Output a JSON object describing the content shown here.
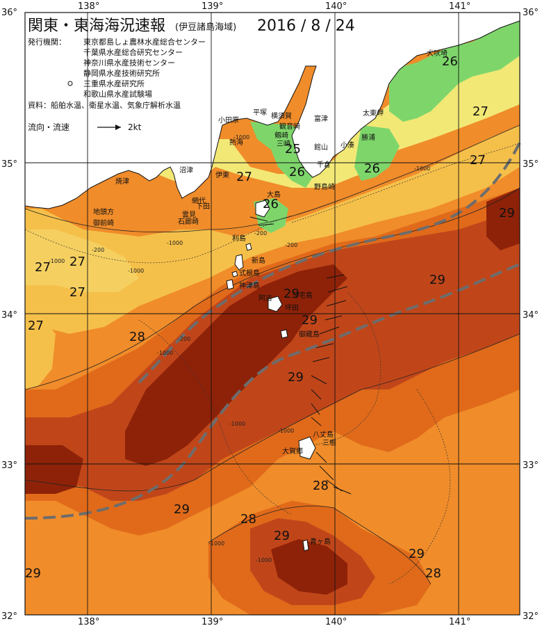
{
  "title": "関東・東海海況速報",
  "subtitle": "(伊豆諸島海域)",
  "date": "2016 / 8 / 24",
  "agencies_label": "発行機関：",
  "agencies": [
    "東京都島しょ農林水産総合センター",
    "千葉県水産総合研究センター",
    "神奈川県水産技術センター",
    "静岡県水産技術研究所",
    "三重県水産研究所",
    "和歌山県水産試験場"
  ],
  "sources": "資料：船舶水温、衛星水温、気象庁解析水温",
  "legend_flow": "流向・流速",
  "legend_speed": "2kt",
  "lon_labels": [
    "138°",
    "139°",
    "140°",
    "141°"
  ],
  "lat_labels": [
    "36°",
    "35°",
    "34°",
    "33°",
    "32°"
  ],
  "iso_labels": [
    "26",
    "27",
    "25",
    "26",
    "26",
    "27",
    "26",
    "27",
    "29",
    "27",
    "27",
    "27",
    "29",
    "27",
    "29",
    "28",
    "29",
    "29",
    "29",
    "28",
    "29",
    "28",
    "29",
    "28",
    "29",
    "28",
    "29",
    "29",
    "29"
  ],
  "place_names": [
    "犬吠埼",
    "太東岬",
    "勝浦",
    "小湊",
    "館山",
    "千倉",
    "野島崎",
    "富津",
    "横須賀",
    "観音崎",
    "剱崎",
    "三崎",
    "平塚",
    "小田原",
    "伊東",
    "熱海",
    "大島",
    "沼津",
    "焼津",
    "網代",
    "下田",
    "石廊崎",
    "雲見",
    "地頭方",
    "御前崎",
    "利島",
    "新島",
    "式根島",
    "神津島",
    "三宅島",
    "御蔵島",
    "八丈島",
    "大賀郷",
    "三根",
    "青ヶ島",
    "坪田",
    "阿古"
  ],
  "depth_labels": [
    "-1000",
    "-1000",
    "-200",
    "-200",
    "-1000",
    "-1000",
    "-1000",
    "-1000",
    "-200",
    "-1000",
    "-1000",
    "-1000",
    "-200",
    "-1000"
  ],
  "colors": {
    "land": "#ffffff",
    "sea_26": "#7ed66b",
    "sea_27": "#f2e876",
    "sea_27b": "#f5c04a",
    "sea_28": "#f08c2a",
    "sea_28b": "#e06a1a",
    "sea_29": "#c0461a",
    "sea_30": "#8e2208",
    "kuroshio": "#6d6d6d",
    "grid": "#111111"
  }
}
